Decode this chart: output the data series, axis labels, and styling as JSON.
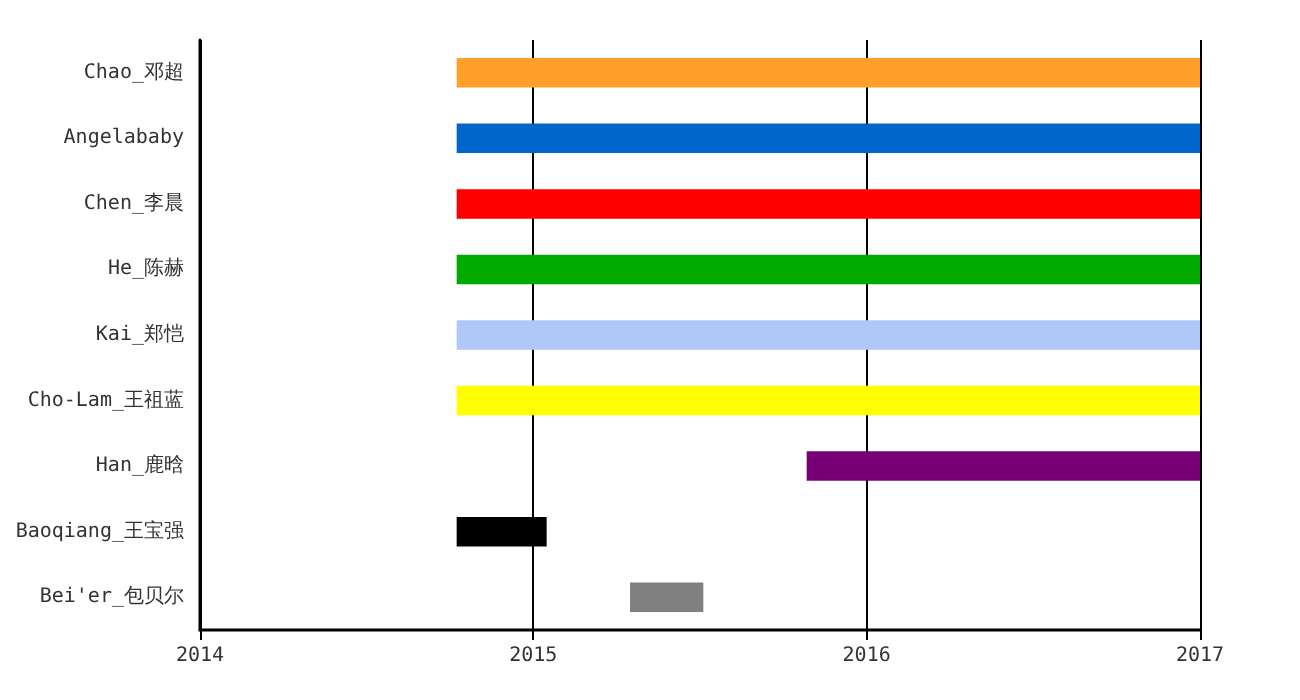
{
  "chart_data": {
    "type": "bar",
    "orientation": "horizontal",
    "categories": [
      "Chao_邓超",
      "Angelababy",
      "Chen_李晨",
      "He_陈赫",
      "Kai_郑恺",
      "Cho-Lam_王祖蓝",
      "Han_鹿晗",
      "Baoqiang_王宝强",
      "Bei'er_包贝尔"
    ],
    "base": [
      2014.77,
      2014.77,
      2014.77,
      2014.77,
      2014.77,
      2014.77,
      2015.82,
      2014.77,
      2015.29
    ],
    "values": [
      2.23,
      2.23,
      2.23,
      2.23,
      2.23,
      2.23,
      1.18,
      0.27,
      0.22
    ],
    "colors": [
      "#ffa02a",
      "#0066cc",
      "#ff0000",
      "#00aa00",
      "#b0c8f8",
      "#ffff00",
      "#770077",
      "#000000",
      "#808080"
    ],
    "xlim": [
      2014,
      2017
    ],
    "xticks": [
      2014,
      2015,
      2016,
      2017
    ],
    "grid": "x"
  }
}
